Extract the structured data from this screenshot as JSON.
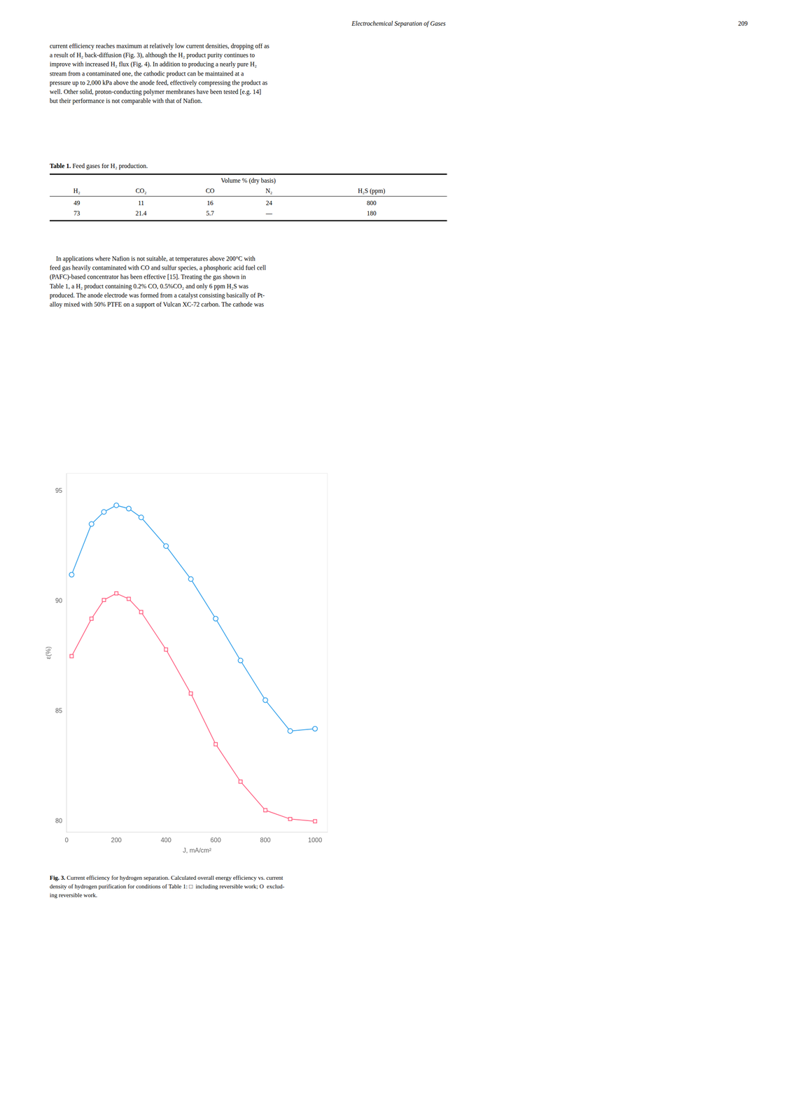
{
  "header": "Electrochemical Separation of Gases",
  "page_number": "209",
  "paragraph_1": "current efficiency reaches maximum at relatively low current densities, dropping off as\na result of H₂ back-diffusion (Fig. 3), although the H₂ product purity continues to\nimprove with increased H₂ flux (Fig. 4). In addition to producing a nearly pure H₂\nstream from a contaminated one, the cathodic product can be maintained at a\npressure up to 2,000 kPa above the anode feed, effectively compressing the product as\nwell. Other solid, proton-conducting polymer membranes have been tested [e.g. 14]\nbut their performance is not comparable with that of Nafion.",
  "table": {
    "title_bold": "Table 1.",
    "title": " Feed gases for H₂ production.",
    "group_header": "Volume % (dry basis)",
    "columns": [
      "H₂",
      "CO₂",
      "CO",
      "N₂",
      "H₂S (ppm)"
    ],
    "rows": [
      [
        "49",
        "11",
        "16",
        "24",
        "800"
      ],
      [
        "73",
        "21.4",
        "5.7",
        "—",
        "180"
      ]
    ]
  },
  "paragraph_2": "    In applications where Nafion is not suitable, at temperatures above 200°C with\nfeed gas heavily contaminated with CO and sulfur species, a phosphoric acid fuel cell\n(PAFC)-based concentrator has been effective [15]. Treating the gas shown in\nTable 1, a H₂ product containing 0.2% CO, 0.5%CO₂ and only 6 ppm H₂S was\nproduced. The anode electrode was formed from a catalyst consisting basically of Pt-\nalloy mixed with 50% PTFE on a support of Vulcan XC-72 carbon. The cathode was",
  "chart_data": {
    "type": "line",
    "xlabel": "J, mA/cm²",
    "ylabel": "ε(%)",
    "x": [
      20,
      100,
      150,
      200,
      250,
      300,
      400,
      500,
      600,
      700,
      800,
      900,
      1000
    ],
    "series": [
      {
        "values": [
          91.2,
          93.5,
          94.05,
          94.35,
          94.2,
          93.8,
          92.5,
          91.0,
          89.2,
          87.3,
          85.5,
          84.1,
          84.2
        ],
        "marker": "circle"
      },
      {
        "values": [
          87.5,
          89.2,
          90.05,
          90.35,
          90.1,
          89.5,
          87.8,
          85.8,
          83.5,
          81.8,
          80.5,
          80.1,
          80.0
        ],
        "marker": "square"
      }
    ],
    "xlim": [
      0,
      1050
    ],
    "ylim": [
      79.5,
      95.8
    ],
    "xticks": [
      0,
      200,
      400,
      600,
      800,
      1000
    ],
    "yticks": [
      80,
      85,
      90,
      95
    ],
    "grid": false
  },
  "caption": {
    "bold": "Fig. 3.",
    "text": " Current efficiency for hydrogen separation. Calculated overall energy efficiency vs. current\ndensity of hydrogen purification for conditions of Table 1: □  including reversible work; O  exclud-\ning reversible work."
  }
}
